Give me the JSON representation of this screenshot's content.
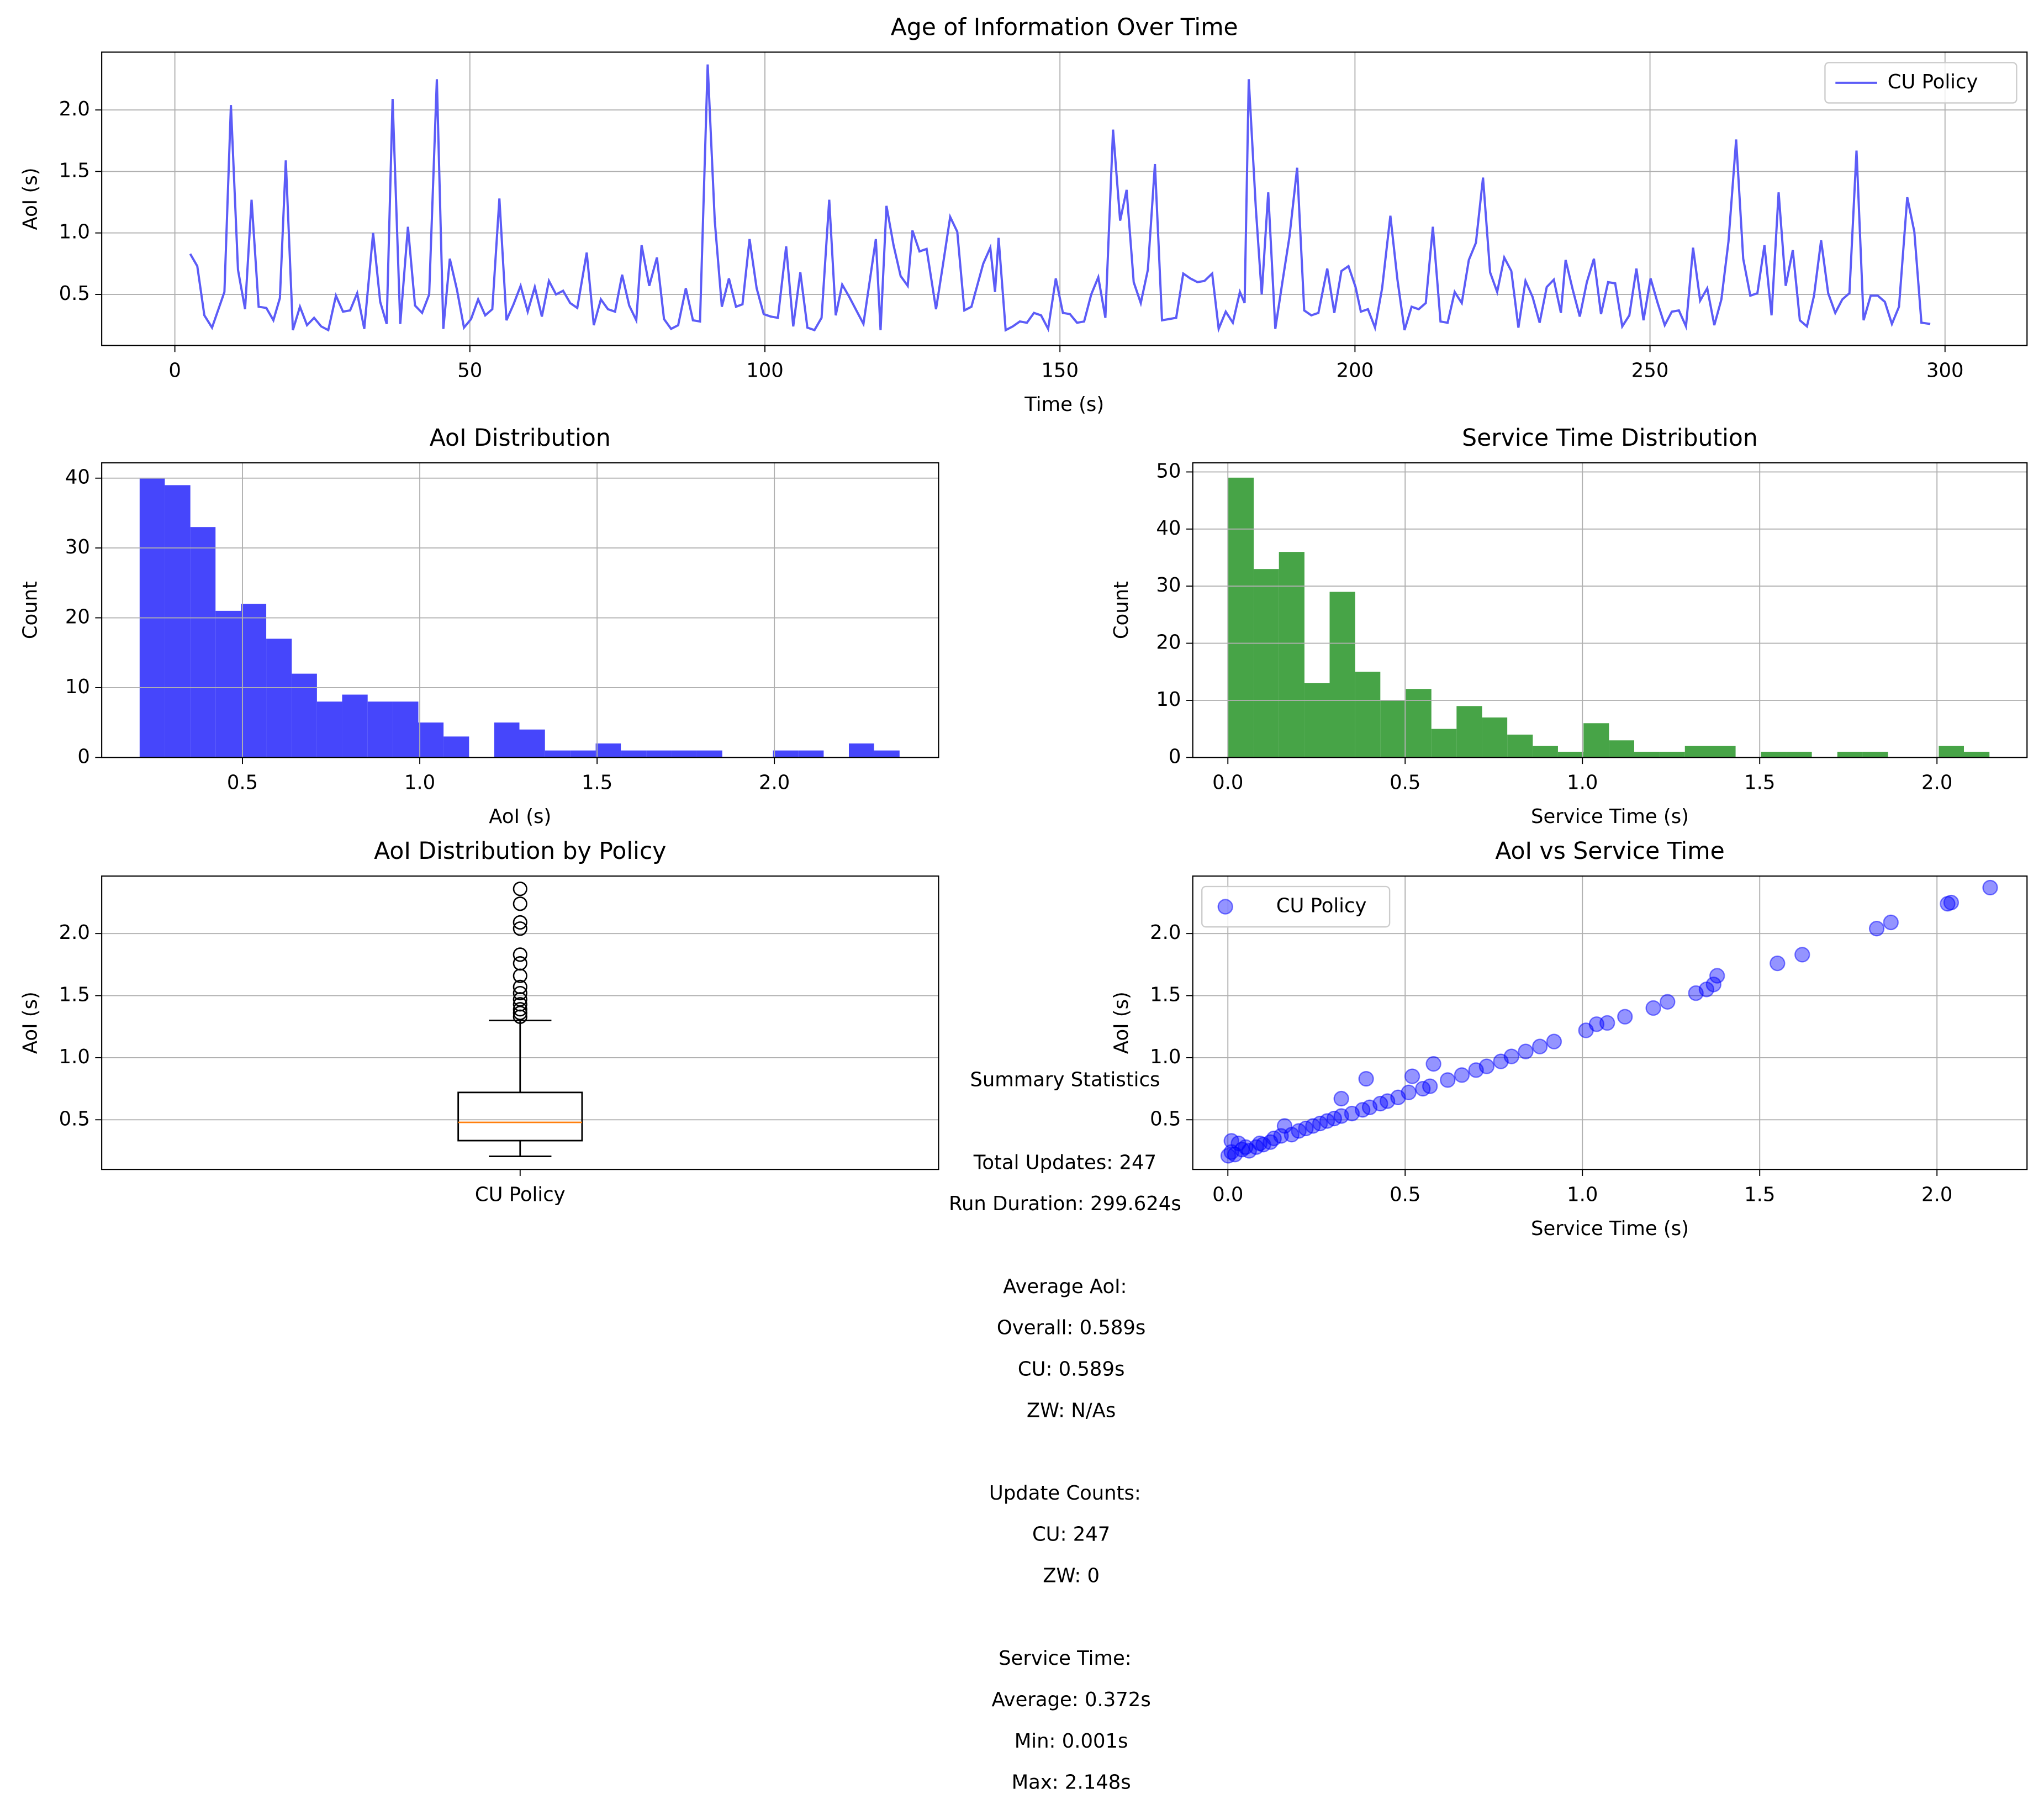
{
  "chart_data": [
    {
      "type": "line",
      "title": "Age of Information Over Time",
      "xlabel": "Time (s)",
      "ylabel": "AoI (s)",
      "x": [
        2.6,
        3.8,
        5.0,
        6.3,
        8.4,
        9.5,
        10.7,
        11.9,
        13.0,
        14.2,
        15.5,
        16.7,
        17.8,
        18.8,
        20.0,
        21.2,
        22.4,
        23.6,
        24.8,
        26.0,
        27.3,
        28.5,
        29.7,
        30.9,
        32.1,
        33.6,
        34.8,
        35.9,
        36.9,
        38.2,
        39.5,
        40.7,
        41.9,
        43.1,
        44.4,
        45.5,
        46.6,
        47.8,
        49.0,
        50.2,
        51.4,
        52.6,
        53.8,
        55.0,
        56.2,
        57.4,
        58.6,
        59.8,
        61.0,
        62.2,
        63.4,
        64.6,
        65.8,
        67.0,
        68.2,
        69.8,
        71.0,
        72.2,
        73.4,
        74.6,
        75.8,
        77.0,
        78.2,
        79.1,
        80.4,
        81.7,
        82.9,
        84.1,
        85.3,
        86.6,
        87.8,
        89.0,
        90.3,
        91.5,
        92.7,
        93.9,
        95.1,
        96.2,
        97.4,
        98.6,
        99.8,
        101.0,
        102.2,
        103.6,
        104.8,
        106.0,
        107.2,
        108.4,
        109.6,
        110.9,
        112.0,
        113.1,
        114.3,
        115.5,
        116.7,
        118.8,
        119.6,
        120.6,
        121.8,
        123.0,
        124.2,
        125.0,
        126.2,
        127.4,
        129.0,
        130.2,
        131.4,
        132.6,
        133.8,
        135.0,
        137.0,
        138.2,
        139.0,
        139.6,
        140.8,
        142.0,
        143.2,
        144.4,
        145.6,
        146.8,
        148.0,
        149.3,
        150.5,
        151.7,
        152.9,
        154.1,
        155.3,
        156.5,
        157.7,
        159.0,
        160.2,
        161.3,
        162.5,
        163.7,
        164.9,
        166.1,
        167.3,
        168.5,
        169.7,
        170.9,
        172.1,
        173.3,
        174.5,
        175.8,
        176.9,
        178.1,
        179.3,
        180.5,
        181.3,
        182.0,
        183.2,
        184.2,
        185.3,
        186.5,
        187.7,
        188.9,
        190.2,
        191.4,
        192.6,
        193.8,
        195.3,
        196.5,
        197.7,
        198.9,
        200.1,
        201.0,
        202.2,
        203.4,
        204.6,
        206.0,
        207.2,
        208.4,
        209.6,
        210.8,
        212.0,
        213.2,
        214.5,
        215.7,
        216.9,
        218.1,
        219.3,
        220.5,
        221.7,
        222.9,
        224.1,
        225.3,
        226.5,
        227.7,
        228.9,
        230.1,
        231.3,
        232.5,
        233.7,
        234.9,
        235.7,
        236.9,
        238.1,
        239.3,
        240.5,
        241.7,
        242.9,
        244.1,
        245.3,
        246.5,
        247.7,
        248.9,
        250.1,
        251.3,
        252.5,
        253.7,
        254.9,
        256.1,
        257.3,
        258.5,
        259.7,
        260.9,
        262.1,
        263.3,
        264.6,
        265.8,
        267.0,
        268.2,
        269.4,
        270.6,
        271.8,
        273.0,
        274.2,
        275.4,
        276.6,
        277.8,
        279.0,
        280.2,
        281.4,
        282.6,
        283.8,
        285.0,
        286.2,
        287.4,
        288.6,
        289.8,
        291.0,
        292.2,
        293.6,
        294.8,
        296.0,
        297.5
      ],
      "series": [
        {
          "name": "CU Policy",
          "color": "#5c5cf7",
          "values": [
            0.83,
            0.73,
            0.33,
            0.23,
            0.52,
            2.04,
            0.7,
            0.38,
            1.27,
            0.4,
            0.39,
            0.29,
            0.47,
            1.59,
            0.21,
            0.4,
            0.25,
            0.31,
            0.24,
            0.21,
            0.49,
            0.36,
            0.37,
            0.51,
            0.22,
            1.0,
            0.44,
            0.26,
            2.09,
            0.26,
            1.05,
            0.41,
            0.35,
            0.5,
            2.25,
            0.22,
            0.79,
            0.54,
            0.23,
            0.3,
            0.46,
            0.33,
            0.38,
            1.28,
            0.29,
            0.42,
            0.57,
            0.36,
            0.56,
            0.32,
            0.61,
            0.5,
            0.53,
            0.43,
            0.39,
            0.84,
            0.25,
            0.46,
            0.38,
            0.36,
            0.66,
            0.41,
            0.29,
            0.9,
            0.57,
            0.8,
            0.3,
            0.22,
            0.25,
            0.55,
            0.29,
            0.28,
            2.37,
            1.1,
            0.4,
            0.63,
            0.4,
            0.42,
            0.95,
            0.55,
            0.34,
            0.32,
            0.31,
            0.89,
            0.24,
            0.68,
            0.23,
            0.21,
            0.31,
            1.27,
            0.33,
            0.58,
            0.48,
            0.37,
            0.26,
            0.95,
            0.21,
            1.22,
            0.9,
            0.65,
            0.57,
            1.02,
            0.85,
            0.87,
            0.38,
            0.75,
            1.13,
            1.01,
            0.37,
            0.4,
            0.75,
            0.88,
            0.52,
            0.96,
            0.21,
            0.24,
            0.28,
            0.27,
            0.35,
            0.33,
            0.22,
            0.63,
            0.35,
            0.34,
            0.27,
            0.28,
            0.5,
            0.64,
            0.31,
            1.84,
            1.1,
            1.35,
            0.6,
            0.43,
            0.7,
            1.56,
            0.29,
            0.3,
            0.31,
            0.67,
            0.63,
            0.6,
            0.61,
            0.67,
            0.22,
            0.36,
            0.27,
            0.52,
            0.43,
            2.25,
            1.2,
            0.5,
            1.33,
            0.22,
            0.6,
            0.97,
            1.53,
            0.37,
            0.33,
            0.35,
            0.71,
            0.35,
            0.69,
            0.73,
            0.56,
            0.36,
            0.38,
            0.23,
            0.55,
            1.14,
            0.62,
            0.21,
            0.4,
            0.38,
            0.43,
            1.05,
            0.28,
            0.27,
            0.52,
            0.43,
            0.78,
            0.92,
            1.45,
            0.68,
            0.52,
            0.8,
            0.69,
            0.23,
            0.61,
            0.48,
            0.27,
            0.56,
            0.62,
            0.35,
            0.78,
            0.54,
            0.32,
            0.6,
            0.79,
            0.34,
            0.6,
            0.59,
            0.24,
            0.33,
            0.71,
            0.29,
            0.63,
            0.43,
            0.25,
            0.36,
            0.37,
            0.24,
            0.88,
            0.45,
            0.55,
            0.25,
            0.46,
            0.93,
            1.76,
            0.79,
            0.49,
            0.51,
            0.9,
            0.33,
            1.33,
            0.57,
            0.86,
            0.29,
            0.24,
            0.49,
            0.94,
            0.51,
            0.35,
            0.46,
            0.51,
            1.67,
            0.29,
            0.49,
            0.49,
            0.44,
            0.26,
            0.4,
            1.29,
            1.01,
            0.27,
            0.26
          ]
        }
      ],
      "xlim": [
        -12.4,
        313.9
      ],
      "xticks": [
        0,
        50,
        100,
        150,
        200,
        250,
        300
      ],
      "ylim": [
        0.085,
        2.47
      ],
      "yticks": [
        {
          "value": 0.5,
          "label": "0.5"
        },
        {
          "value": 1,
          "label": "1.0"
        },
        {
          "value": 1.5,
          "label": "1.5"
        },
        {
          "value": 2,
          "label": "2.0"
        }
      ],
      "grid": true,
      "legend": "upper right"
    },
    {
      "type": "histogram",
      "title": "AoI Distribution",
      "xlabel": "AoI (s)",
      "ylabel": "Count",
      "color": "#4646fb",
      "bins": [
        0.21,
        0.281,
        0.353,
        0.424,
        0.496,
        0.567,
        0.639,
        0.71,
        0.781,
        0.853,
        0.924,
        0.996,
        1.067,
        1.139,
        1.21,
        1.281,
        1.353,
        1.424,
        1.496,
        1.567,
        1.639,
        1.71,
        1.781,
        1.853,
        1.924,
        1.996,
        2.067,
        2.139,
        2.21,
        2.281,
        2.353
      ],
      "values": [
        40,
        39,
        33,
        21,
        22,
        17,
        12,
        8,
        9,
        8,
        8,
        5,
        3,
        0,
        5,
        4,
        1,
        1,
        2,
        1,
        1,
        1,
        1,
        0,
        0,
        1,
        1,
        0,
        2,
        1
      ],
      "xlim": [
        0.103,
        2.463
      ],
      "xticks": [
        {
          "value": 0.5,
          "label": "0.5"
        },
        {
          "value": 1,
          "label": "1.0"
        },
        {
          "value": 1.5,
          "label": "1.5"
        },
        {
          "value": 2,
          "label": "2.0"
        }
      ],
      "ylim": [
        0,
        42.2
      ],
      "yticks": [
        0,
        10,
        20,
        30,
        40
      ],
      "grid": true
    },
    {
      "type": "histogram",
      "title": "Service Time Distribution",
      "xlabel": "Service Time (s)",
      "ylabel": "Count",
      "color": "#47a447",
      "bins": [
        0.001,
        0.073,
        0.144,
        0.216,
        0.287,
        0.359,
        0.43,
        0.502,
        0.574,
        0.645,
        0.717,
        0.788,
        0.86,
        0.931,
        1.003,
        1.075,
        1.146,
        1.218,
        1.289,
        1.361,
        1.432,
        1.504,
        1.576,
        1.647,
        1.719,
        1.79,
        1.862,
        1.933,
        2.005,
        2.076,
        2.148
      ],
      "values": [
        49,
        33,
        36,
        13,
        29,
        15,
        10,
        12,
        5,
        9,
        7,
        4,
        2,
        1,
        6,
        3,
        1,
        1,
        2,
        2,
        0,
        1,
        1,
        0,
        1,
        1,
        0,
        0,
        2,
        1
      ],
      "xlim": [
        -0.099,
        2.254
      ],
      "xticks": [
        {
          "value": 0,
          "label": "0.0"
        },
        {
          "value": 0.5,
          "label": "0.5"
        },
        {
          "value": 1,
          "label": "1.0"
        },
        {
          "value": 1.5,
          "label": "1.5"
        },
        {
          "value": 2,
          "label": "2.0"
        }
      ],
      "ylim": [
        0,
        51.6
      ],
      "yticks": [
        0,
        10,
        20,
        30,
        40,
        50
      ],
      "grid": true
    },
    {
      "type": "box",
      "title": "AoI Distribution by Policy",
      "ylabel": "AoI (s)",
      "categories": [
        "CU Policy"
      ],
      "boxes": [
        {
          "whislo": 0.205,
          "q1": 0.332,
          "med": 0.479,
          "q3": 0.72,
          "whishi": 1.3,
          "fliers": [
            1.33,
            1.36,
            1.39,
            1.43,
            1.47,
            1.52,
            1.57,
            1.66,
            1.76,
            1.83,
            2.04,
            2.09,
            2.24,
            2.36
          ]
        }
      ],
      "color": "#000000",
      "median_color": "#ff7f0e",
      "ylim": [
        0.1,
        2.463
      ],
      "yticks": [
        {
          "value": 0.5,
          "label": "0.5"
        },
        {
          "value": 1,
          "label": "1.0"
        },
        {
          "value": 1.5,
          "label": "1.5"
        },
        {
          "value": 2,
          "label": "2.0"
        }
      ],
      "grid": true
    },
    {
      "type": "scatter",
      "title": "AoI vs Service Time",
      "xlabel": "Service Time (s)",
      "ylabel": "AoI (s)",
      "x": [
        0.001,
        0.01,
        0.02,
        0.03,
        0.01,
        0.04,
        0.05,
        0.06,
        0.08,
        0.09,
        0.1,
        0.12,
        0.13,
        0.15,
        0.16,
        0.18,
        0.2,
        0.22,
        0.24,
        0.26,
        0.28,
        0.3,
        0.32,
        0.32,
        0.35,
        0.38,
        0.39,
        0.4,
        0.43,
        0.45,
        0.48,
        0.51,
        0.52,
        0.55,
        0.57,
        0.58,
        0.62,
        0.66,
        0.7,
        0.73,
        0.77,
        0.8,
        0.84,
        0.88,
        0.92,
        1.01,
        1.04,
        1.07,
        1.12,
        1.2,
        1.24,
        1.32,
        1.35,
        1.37,
        1.38,
        1.55,
        1.62,
        1.83,
        1.87,
        2.03,
        2.04,
        2.15
      ],
      "series": [
        {
          "name": "CU Policy",
          "color": "#0000ff",
          "values": [
            0.21,
            0.24,
            0.22,
            0.31,
            0.33,
            0.26,
            0.28,
            0.25,
            0.28,
            0.31,
            0.3,
            0.32,
            0.35,
            0.37,
            0.45,
            0.38,
            0.41,
            0.43,
            0.45,
            0.47,
            0.49,
            0.51,
            0.53,
            0.67,
            0.55,
            0.58,
            0.83,
            0.6,
            0.63,
            0.65,
            0.68,
            0.72,
            0.85,
            0.75,
            0.77,
            0.95,
            0.82,
            0.86,
            0.9,
            0.93,
            0.97,
            1.01,
            1.05,
            1.09,
            1.13,
            1.22,
            1.27,
            1.28,
            1.33,
            1.4,
            1.45,
            1.52,
            1.55,
            1.59,
            1.66,
            1.76,
            1.83,
            2.04,
            2.09,
            2.24,
            2.25,
            2.37
          ]
        }
      ],
      "xlim": [
        -0.099,
        2.254
      ],
      "xticks": [
        {
          "value": 0,
          "label": "0.0"
        },
        {
          "value": 0.5,
          "label": "0.5"
        },
        {
          "value": 1,
          "label": "1.0"
        },
        {
          "value": 1.5,
          "label": "1.5"
        },
        {
          "value": 2,
          "label": "2.0"
        }
      ],
      "ylim": [
        0.1,
        2.463
      ],
      "yticks": [
        {
          "value": 0.5,
          "label": "0.5"
        },
        {
          "value": 1,
          "label": "1.0"
        },
        {
          "value": 1.5,
          "label": "1.5"
        },
        {
          "value": 2,
          "label": "2.0"
        }
      ],
      "grid": true,
      "legend": "upper left"
    }
  ],
  "summary": {
    "title": "Summary Statistics",
    "sections": [
      [
        "Total Updates: 247",
        "Run Duration: 299.624s"
      ],
      [
        "Average AoI:",
        "  Overall: 0.589s",
        "  CU: 0.589s",
        "  ZW: N/As"
      ],
      [
        "Update Counts:",
        "  CU: 247",
        "  ZW: 0"
      ],
      [
        "Service Time:",
        "  Average: 0.372s",
        "  Min: 0.001s",
        "  Max: 2.148s"
      ]
    ]
  }
}
